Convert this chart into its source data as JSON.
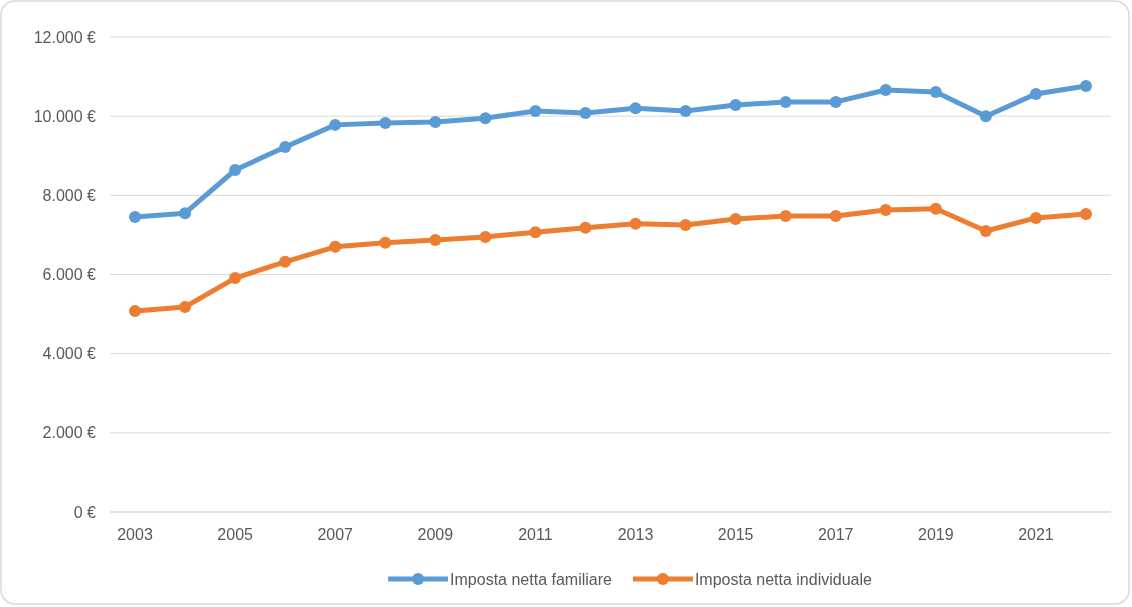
{
  "chart_data": {
    "type": "line",
    "x": [
      2003,
      2004,
      2005,
      2006,
      2007,
      2008,
      2009,
      2010,
      2011,
      2012,
      2013,
      2014,
      2015,
      2016,
      2017,
      2018,
      2019,
      2020,
      2021,
      2022
    ],
    "series": [
      {
        "name": "Imposta netta familiare",
        "color": "#5b9bd5",
        "values": [
          7450,
          7550,
          8640,
          9220,
          9780,
          9830,
          9850,
          9950,
          10130,
          10080,
          10200,
          10130,
          10280,
          10360,
          10360,
          10660,
          10610,
          10000,
          10560,
          10760
        ]
      },
      {
        "name": "Imposta netta individuale",
        "color": "#ed7d31",
        "values": [
          5080,
          5180,
          5910,
          6320,
          6700,
          6800,
          6870,
          6950,
          7070,
          7180,
          7280,
          7250,
          7400,
          7480,
          7480,
          7630,
          7660,
          7100,
          7430,
          7530
        ]
      }
    ],
    "xlim": [
      2002.5,
      2022.5
    ],
    "xticks": [
      2003,
      2005,
      2007,
      2009,
      2011,
      2013,
      2015,
      2017,
      2019,
      2021
    ],
    "ylim": [
      0,
      12000
    ],
    "yticks": [
      {
        "value": 0,
        "label": "0 €"
      },
      {
        "value": 2000,
        "label": "2.000 €"
      },
      {
        "value": 4000,
        "label": "4.000 €"
      },
      {
        "value": 6000,
        "label": "6.000 €"
      },
      {
        "value": 8000,
        "label": "8.000 €"
      },
      {
        "value": 10000,
        "label": "10.000 €"
      },
      {
        "value": 12000,
        "label": "12.000 €"
      }
    ],
    "grid": "y",
    "legend": "bottom",
    "marker": "circle",
    "line_style": "solid"
  }
}
